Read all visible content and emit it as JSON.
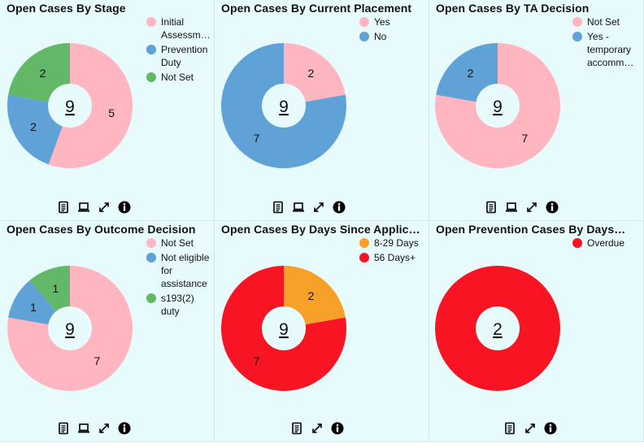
{
  "panels": [
    {
      "title": "Open Cases By Stage",
      "total": "9",
      "chart_data": {
        "type": "pie",
        "title": "Open Cases By Stage",
        "categories": [
          "Initial Assessm…",
          "Prevention Duty",
          "Not Set"
        ],
        "values": [
          5,
          2,
          2
        ],
        "colors": [
          "#ffb6c1",
          "#5fa2d8",
          "#62b866"
        ],
        "labels": [
          "5",
          "2",
          "2"
        ]
      },
      "legend": [
        {
          "label": "Initial Assessm…",
          "color": "#ffb6c1"
        },
        {
          "label": "Prevention Duty",
          "color": "#5fa2d8"
        },
        {
          "label": "Not Set",
          "color": "#62b866"
        }
      ],
      "tools": [
        "document-icon",
        "laptop-icon",
        "expand-icon",
        "info-icon"
      ]
    },
    {
      "title": "Open Cases By Current Placement",
      "total": "9",
      "chart_data": {
        "type": "pie",
        "title": "Open Cases By Current Placement",
        "categories": [
          "Yes",
          "No"
        ],
        "values": [
          2,
          7
        ],
        "colors": [
          "#ffb6c1",
          "#5fa2d8"
        ],
        "labels": [
          "2",
          "7"
        ]
      },
      "legend": [
        {
          "label": "Yes",
          "color": "#ffb6c1"
        },
        {
          "label": "No",
          "color": "#5fa2d8"
        }
      ],
      "tools": [
        "document-icon",
        "laptop-icon",
        "expand-icon",
        "info-icon"
      ]
    },
    {
      "title": "Open Cases By TA Decision",
      "total": "9",
      "chart_data": {
        "type": "pie",
        "title": "Open Cases By TA Decision",
        "categories": [
          "Not Set",
          "Yes - temporary accomm…"
        ],
        "values": [
          7,
          2
        ],
        "colors": [
          "#ffb6c1",
          "#5fa2d8"
        ],
        "labels": [
          "7",
          "2"
        ]
      },
      "legend": [
        {
          "label": "Not Set",
          "color": "#ffb6c1"
        },
        {
          "label": "Yes - temporary accomm…",
          "color": "#5fa2d8"
        }
      ],
      "tools": [
        "document-icon",
        "laptop-icon",
        "expand-icon",
        "info-icon"
      ]
    },
    {
      "title": "Open Cases By Outcome Decision",
      "total": "9",
      "chart_data": {
        "type": "pie",
        "title": "Open Cases By Outcome Decision",
        "categories": [
          "Not Set",
          "Not eligible for assistance",
          "s193(2) duty"
        ],
        "values": [
          7,
          1,
          1
        ],
        "colors": [
          "#ffb6c1",
          "#5fa2d8",
          "#62b866"
        ],
        "labels": [
          "7",
          "1",
          "1"
        ]
      },
      "legend": [
        {
          "label": "Not Set",
          "color": "#ffb6c1"
        },
        {
          "label": "Not eligible for assistance",
          "color": "#5fa2d8"
        },
        {
          "label": "s193(2) duty",
          "color": "#62b866"
        }
      ],
      "tools": [
        "document-icon",
        "laptop-icon",
        "expand-icon",
        "info-icon"
      ]
    },
    {
      "title": "Open Cases By Days Since Applic…",
      "total": "9",
      "chart_data": {
        "type": "pie",
        "title": "Open Cases By Days Since Applic…",
        "categories": [
          "8-29 Days",
          "56 Days+"
        ],
        "values": [
          2,
          7
        ],
        "colors": [
          "#f7a129",
          "#f81423"
        ],
        "labels": [
          "2",
          "7"
        ]
      },
      "legend": [
        {
          "label": "8-29 Days",
          "color": "#f7a129"
        },
        {
          "label": "56 Days+",
          "color": "#f81423"
        }
      ],
      "tools": [
        "document-icon",
        "expand-icon",
        "info-icon"
      ]
    },
    {
      "title": "Open Prevention Cases By Days…",
      "total": "2",
      "chart_data": {
        "type": "pie",
        "title": "Open Prevention Cases By Days…",
        "categories": [
          "Overdue"
        ],
        "values": [
          2
        ],
        "colors": [
          "#f81423"
        ],
        "labels": [
          ""
        ]
      },
      "legend": [
        {
          "label": "Overdue",
          "color": "#f81423"
        }
      ],
      "tools": [
        "document-icon",
        "expand-icon",
        "info-icon"
      ]
    }
  ]
}
